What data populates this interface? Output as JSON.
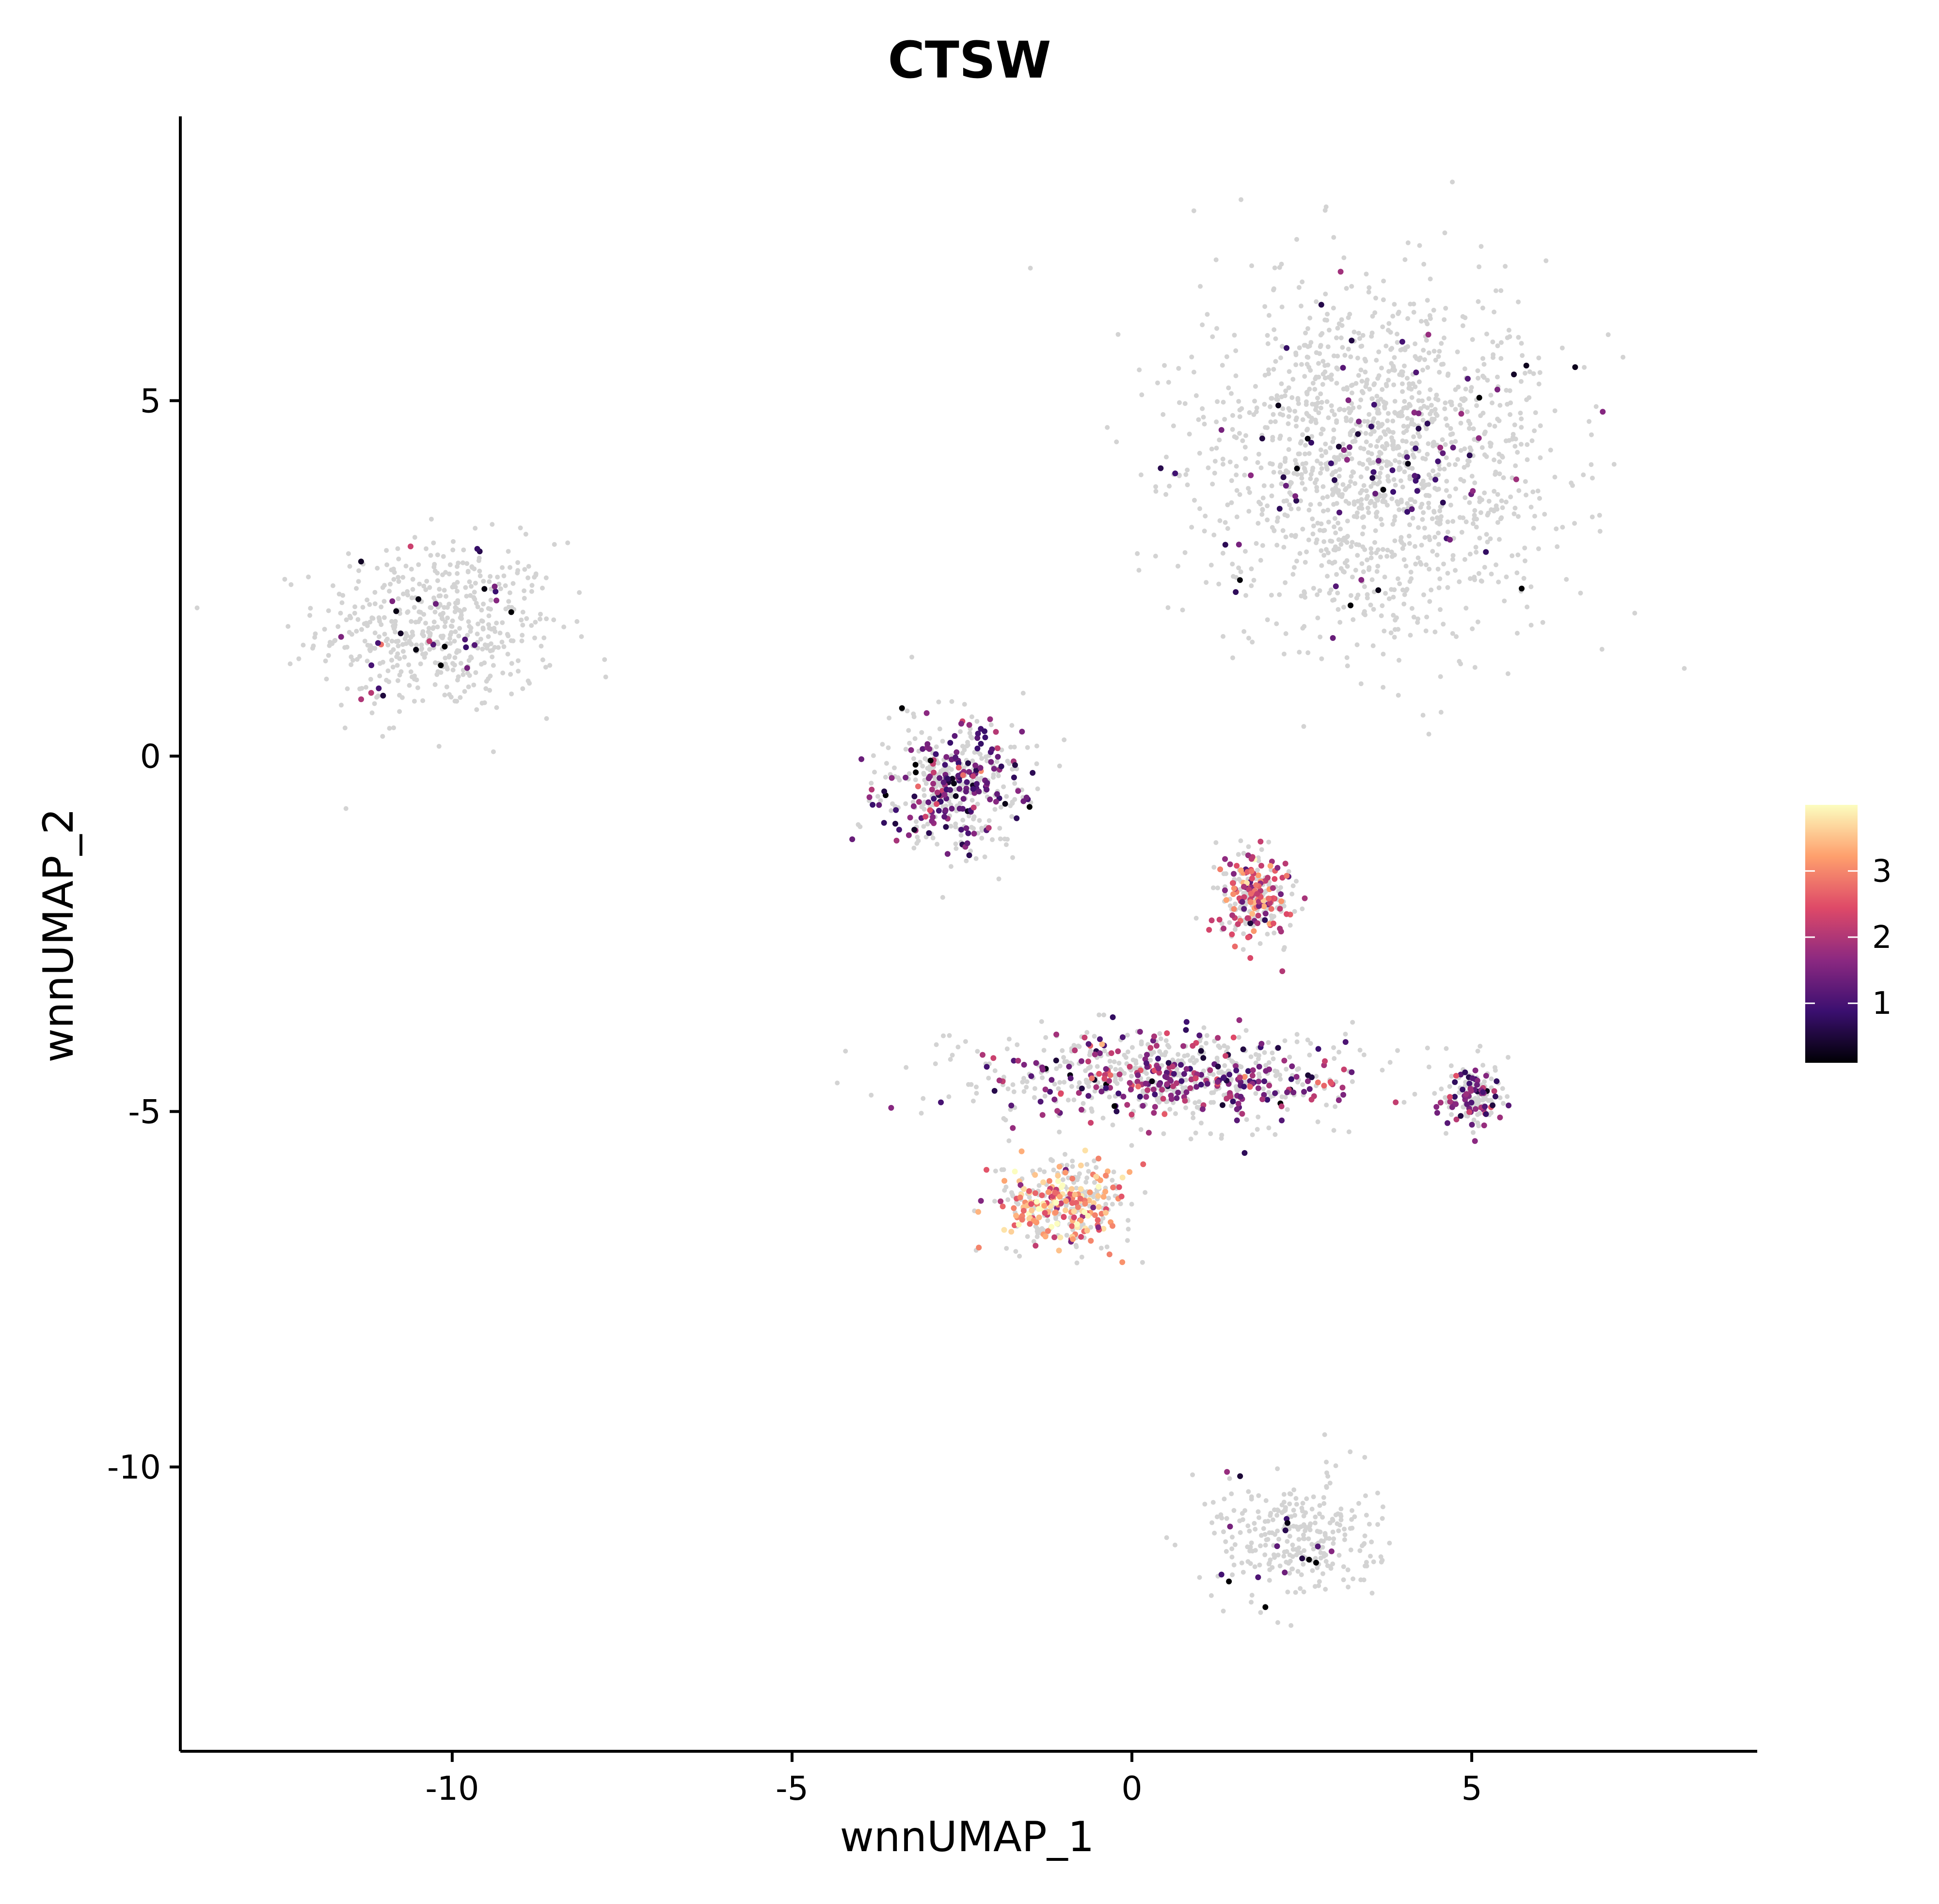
{
  "chart_data": {
    "type": "scatter",
    "title": "CTSW",
    "xlabel": "wnnUMAP_1",
    "ylabel": "wnnUMAP_2",
    "xlim": [
      -14,
      9.2
    ],
    "ylim": [
      -14,
      9
    ],
    "x_ticks": [
      {
        "value": -10,
        "label": "-10"
      },
      {
        "value": -5,
        "label": "-5"
      },
      {
        "value": 0,
        "label": "0"
      },
      {
        "value": 5,
        "label": "5"
      }
    ],
    "y_ticks": [
      {
        "value": 5,
        "label": "5"
      },
      {
        "value": 0,
        "label": "0"
      },
      {
        "value": -5,
        "label": "-5"
      },
      {
        "value": -10,
        "label": "-10"
      }
    ],
    "grid": false,
    "background_point_color": "#d3d3d3",
    "colorbar": {
      "placement": "right",
      "min": 0.1,
      "max": 4.0,
      "ticks": [
        {
          "value": 1,
          "label": "1"
        },
        {
          "value": 2,
          "label": "2"
        },
        {
          "value": 3,
          "label": "3"
        }
      ],
      "colormap": "magma",
      "colors": [
        "#000004",
        "#3b0f70",
        "#8c2981",
        "#de4968",
        "#fe9f6d",
        "#fcfdbf"
      ]
    },
    "clusters": [
      {
        "name": "left island",
        "center": [
          -10.2,
          1.8
        ],
        "spread": [
          1.6,
          1.1
        ],
        "expression": "sparse"
      },
      {
        "name": "top-right mass",
        "center": [
          3.6,
          4.2
        ],
        "spread": [
          2.4,
          2.2
        ],
        "expression": "sparse"
      },
      {
        "name": "middle-left arm",
        "center": [
          -2.6,
          -0.4
        ],
        "spread": [
          1.0,
          0.9
        ],
        "expression": "moderate",
        "mean_level": 1.2
      },
      {
        "name": "central knot",
        "center": [
          1.8,
          -2.0
        ],
        "spread": [
          0.5,
          0.6
        ],
        "expression": "high",
        "mean_level": 2.3
      },
      {
        "name": "diagonal band",
        "center": [
          0.5,
          -4.5
        ],
        "spread": [
          2.5,
          0.6
        ],
        "expression": "moderate",
        "mean_level": 1.6
      },
      {
        "name": "right blob",
        "center": [
          5.0,
          -4.8
        ],
        "spread": [
          0.4,
          0.4
        ],
        "expression": "moderate",
        "mean_level": 1.5
      },
      {
        "name": "lower-left peak",
        "center": [
          -1.0,
          -6.3
        ],
        "spread": [
          0.9,
          0.6
        ],
        "expression": "high",
        "mean_level": 3.2
      },
      {
        "name": "bottom cluster",
        "center": [
          2.4,
          -11.0
        ],
        "spread": [
          1.1,
          0.8
        ],
        "expression": "sparse"
      }
    ]
  }
}
